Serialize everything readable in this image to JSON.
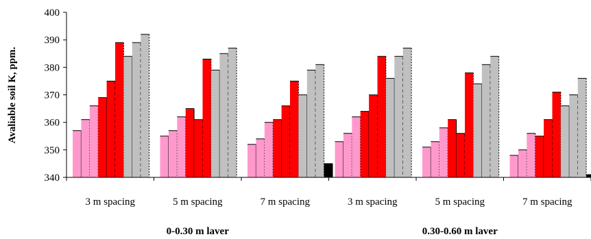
{
  "chart_data": {
    "type": "bar",
    "title": "",
    "xlabel": "",
    "ylabel": "Avaliable soil K, ppm.",
    "ylim": [
      340,
      400
    ],
    "yticks": [
      340,
      350,
      360,
      370,
      380,
      390,
      400
    ],
    "grid": false,
    "legend": "none",
    "categories": [
      "3 m spacing",
      "5 m spacing",
      "7 m spacing",
      "3 m spacing",
      "5 m spacing",
      "7 m spacing"
    ],
    "groups": [
      {
        "label": "0-0.30 m laver",
        "categories": [
          0,
          1,
          2
        ]
      },
      {
        "label": "0.30-0.60 m laver",
        "categories": [
          3,
          4,
          5
        ]
      }
    ],
    "bar_colors": [
      "#ff99cc",
      "#ff99cc",
      "#ff99cc",
      "#ff0000",
      "#ff0000",
      "#ff0000",
      "#c0c0c0",
      "#c0c0c0",
      "#c0c0c0",
      "#000000"
    ],
    "values": [
      [
        357,
        361,
        366,
        369,
        375,
        389,
        384,
        389,
        392,
        null
      ],
      [
        355,
        357,
        362,
        365,
        361,
        383,
        379,
        385,
        387,
        null
      ],
      [
        352,
        354,
        360,
        361,
        366,
        375,
        370,
        379,
        381,
        345
      ],
      [
        353,
        356,
        362,
        364,
        370,
        384,
        376,
        384,
        387,
        null
      ],
      [
        351,
        353,
        358,
        361,
        356,
        378,
        374,
        381,
        384,
        null
      ],
      [
        348,
        350,
        356,
        355,
        361,
        371,
        366,
        370,
        376,
        341
      ]
    ]
  }
}
